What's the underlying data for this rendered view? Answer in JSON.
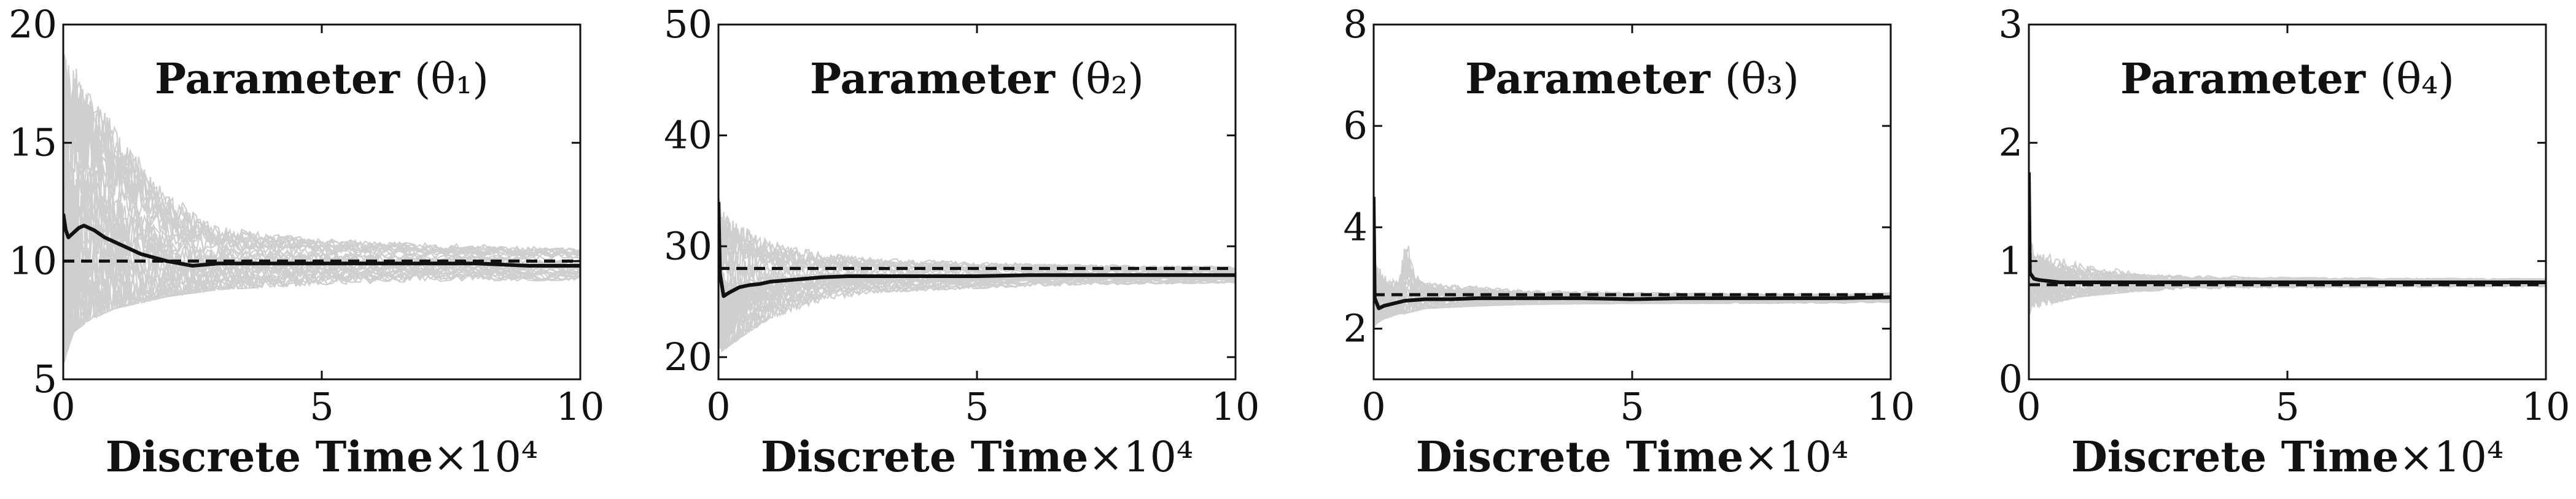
{
  "colors": {
    "mean_line": "#111111",
    "true_value_line": "#111111",
    "particle_lines": "#cfcfcf",
    "axes": "#111111"
  },
  "chart_data": [
    {
      "type": "line",
      "title_text": "Parameter",
      "title_symbol": "(θ₁)",
      "xlabel_text": "Discrete Time",
      "xlabel_scale": "×10⁴",
      "xlim": [
        0,
        10
      ],
      "ylim": [
        5,
        20
      ],
      "xticks": [
        "0",
        "5",
        "10"
      ],
      "yticks": [
        "5",
        "10",
        "15",
        "20"
      ],
      "true_value": 10.0,
      "series": [
        {
          "style": "solid-black",
          "x": [
            0,
            0.05,
            0.1,
            0.2,
            0.3,
            0.4,
            0.5,
            0.6,
            0.8,
            1.0,
            1.2,
            1.5,
            2.0,
            2.5,
            3.0,
            4.0,
            5.0,
            6.0,
            7.0,
            8.0,
            9.0,
            10.0
          ],
          "y": [
            12.0,
            11.3,
            11.0,
            11.2,
            11.4,
            11.5,
            11.4,
            11.3,
            11.0,
            10.8,
            10.6,
            10.3,
            10.0,
            9.8,
            9.9,
            9.9,
            9.9,
            9.9,
            9.9,
            9.9,
            9.8,
            9.8
          ]
        }
      ],
      "envelope": {
        "x": [
          0,
          0.05,
          0.2,
          0.5,
          1.0,
          2.0,
          3.0,
          5.0,
          7.0,
          10.0
        ],
        "lower": [
          5.5,
          6.0,
          7.0,
          7.5,
          8.0,
          8.5,
          8.8,
          9.0,
          9.1,
          9.2
        ],
        "upper": [
          19.5,
          19.0,
          18.5,
          17.5,
          16.0,
          13.0,
          11.5,
          11.0,
          10.8,
          10.6
        ]
      }
    },
    {
      "type": "line",
      "title_text": "Parameter",
      "title_symbol": "(θ₂)",
      "xlabel_text": "Discrete Time",
      "xlabel_scale": "×10⁴",
      "xlim": [
        0,
        10
      ],
      "ylim": [
        18,
        50
      ],
      "xticks": [
        "0",
        "5",
        "10"
      ],
      "yticks": [
        "20",
        "30",
        "40",
        "50"
      ],
      "true_value": 28.0,
      "series": [
        {
          "style": "solid-black",
          "x": [
            0,
            0.03,
            0.1,
            0.2,
            0.4,
            0.6,
            0.8,
            1.0,
            1.5,
            2.0,
            2.5,
            3.0,
            4.0,
            5.0,
            6.0,
            7.0,
            8.0,
            9.0,
            10.0
          ],
          "y": [
            34.0,
            27.5,
            25.5,
            25.8,
            26.3,
            26.5,
            26.6,
            26.8,
            27.0,
            27.2,
            27.3,
            27.3,
            27.3,
            27.3,
            27.4,
            27.4,
            27.4,
            27.4,
            27.4
          ]
        }
      ],
      "envelope": {
        "x": [
          0,
          0.05,
          0.2,
          0.5,
          1.0,
          2.0,
          3.0,
          5.0,
          7.0,
          10.0
        ],
        "lower": [
          20.0,
          20.5,
          21.0,
          22.0,
          23.5,
          25.0,
          25.8,
          26.2,
          26.5,
          26.7
        ],
        "upper": [
          34.5,
          33.5,
          33.0,
          32.0,
          30.5,
          29.5,
          29.0,
          28.6,
          28.4,
          28.2
        ]
      }
    },
    {
      "type": "line",
      "title_text": "Parameter",
      "title_symbol": "(θ₃)",
      "xlabel_text": "Discrete Time",
      "xlabel_scale": "×10⁴",
      "xlim": [
        0,
        10
      ],
      "ylim": [
        1,
        8
      ],
      "xticks": [
        "0",
        "5",
        "10"
      ],
      "yticks": [
        "2",
        "4",
        "6",
        "8"
      ],
      "true_value": 2.67,
      "series": [
        {
          "style": "solid-black",
          "x": [
            0,
            0.02,
            0.1,
            0.2,
            0.4,
            0.6,
            1.0,
            1.5,
            2.0,
            3.0,
            4.0,
            5.0,
            6.0,
            7.0,
            8.0,
            9.0,
            10.0
          ],
          "y": [
            4.6,
            2.6,
            2.4,
            2.45,
            2.5,
            2.55,
            2.58,
            2.58,
            2.6,
            2.6,
            2.6,
            2.58,
            2.6,
            2.6,
            2.6,
            2.6,
            2.62
          ]
        }
      ],
      "envelope": {
        "x": [
          0,
          0.05,
          0.2,
          0.5,
          0.6,
          0.8,
          1.0,
          2.0,
          3.0,
          5.0,
          10.0
        ],
        "lower": [
          2.0,
          2.1,
          2.2,
          2.3,
          2.3,
          2.35,
          2.4,
          2.45,
          2.48,
          2.5,
          2.5
        ],
        "upper": [
          4.0,
          3.5,
          3.2,
          3.0,
          4.3,
          3.2,
          3.0,
          2.9,
          2.8,
          2.75,
          2.7
        ]
      }
    },
    {
      "type": "line",
      "title_text": "Parameter",
      "title_symbol": "(θ₄)",
      "xlabel_text": "Discrete Time",
      "xlabel_scale": "×10⁴",
      "xlim": [
        0,
        10
      ],
      "ylim": [
        0,
        3
      ],
      "xticks": [
        "0",
        "5",
        "10"
      ],
      "yticks": [
        "0",
        "1",
        "2",
        "3"
      ],
      "true_value": 0.8,
      "series": [
        {
          "style": "solid-black",
          "x": [
            0,
            0.02,
            0.1,
            0.2,
            0.4,
            0.6,
            1.0,
            1.5,
            2.0,
            3.0,
            5.0,
            7.0,
            10.0
          ],
          "y": [
            1.75,
            0.9,
            0.85,
            0.84,
            0.83,
            0.82,
            0.82,
            0.82,
            0.82,
            0.82,
            0.82,
            0.82,
            0.82
          ]
        }
      ],
      "envelope": {
        "x": [
          0,
          0.05,
          0.2,
          0.5,
          1.0,
          2.0,
          3.0,
          5.0,
          10.0
        ],
        "lower": [
          0.5,
          0.55,
          0.6,
          0.65,
          0.7,
          0.74,
          0.76,
          0.77,
          0.78
        ],
        "upper": [
          1.3,
          1.15,
          1.1,
          1.05,
          1.0,
          0.92,
          0.88,
          0.86,
          0.85
        ]
      }
    }
  ]
}
